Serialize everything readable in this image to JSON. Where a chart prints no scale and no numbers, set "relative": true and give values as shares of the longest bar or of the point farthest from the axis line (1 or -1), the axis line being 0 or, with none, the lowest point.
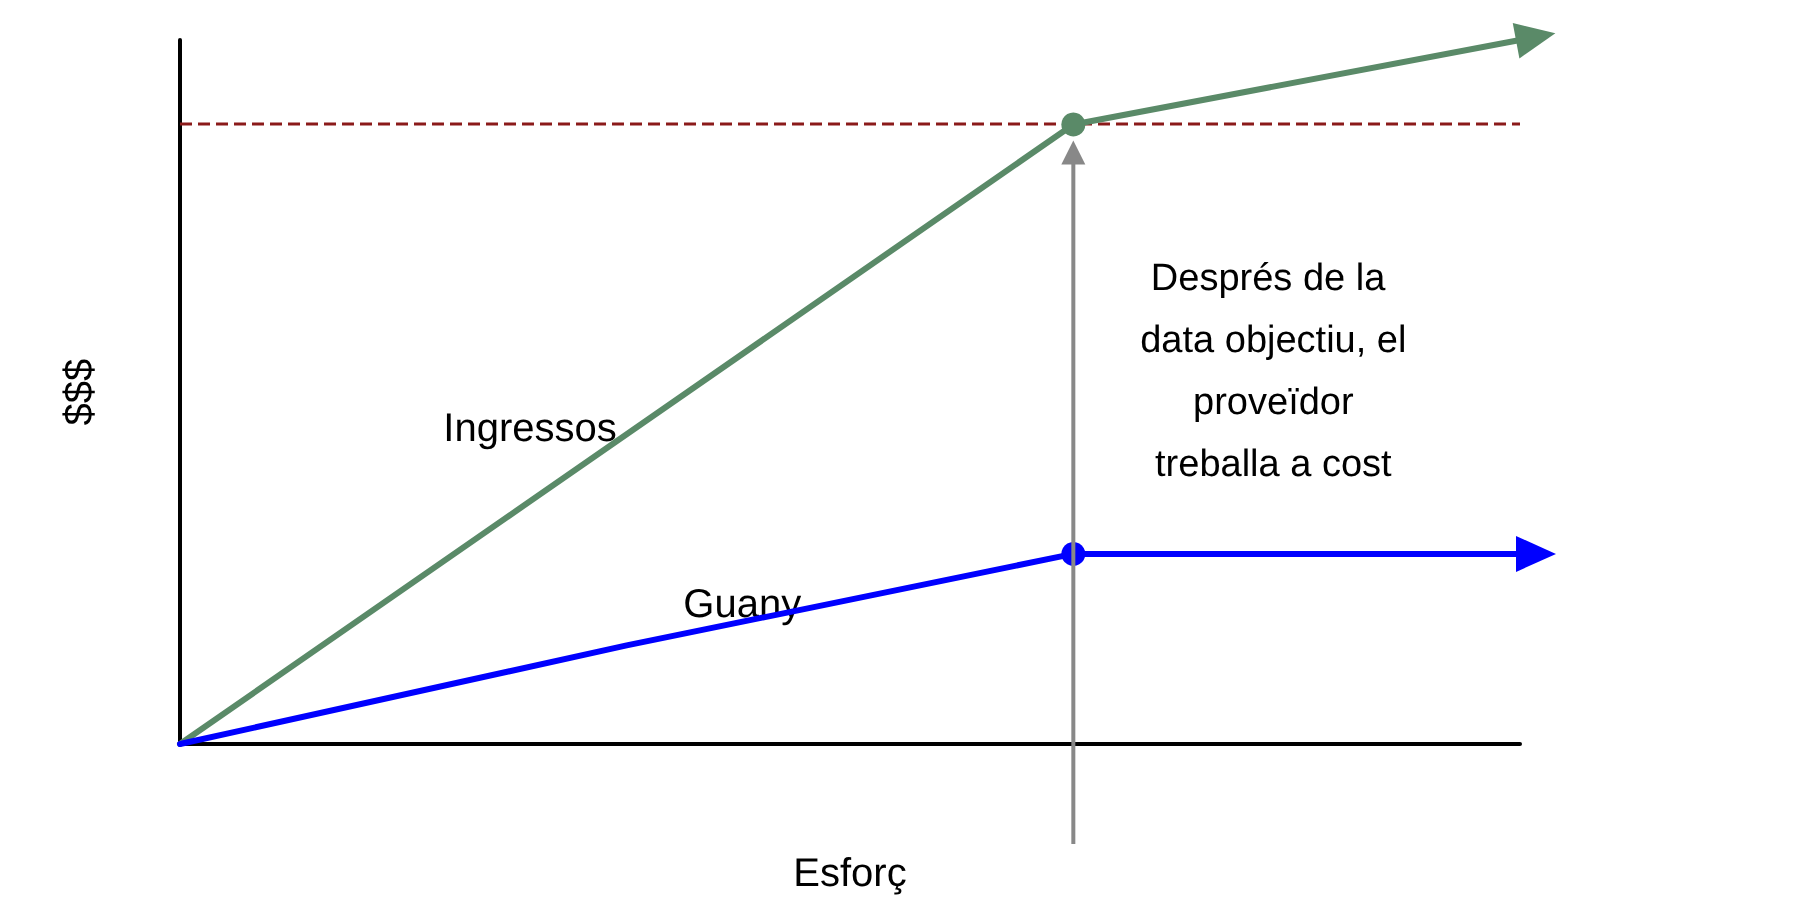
{
  "chart_data": {
    "type": "line",
    "relative": true,
    "xlabel": "Esforç",
    "ylabel": "$$$",
    "categories": [
      null,
      null,
      null,
      null
    ],
    "series": [
      {
        "name": "Ingressos",
        "color": "#5a8a68",
        "values": [
          0,
          0.44,
          0.88,
          1
        ]
      },
      {
        "name": "Guany",
        "color": "#0000ff",
        "values": [
          0,
          0.14,
          0.27,
          0.27
        ]
      }
    ],
    "ref_lines": [
      {
        "axis": "y",
        "value": 0.88,
        "color": "#8b1a1a",
        "line_style": "dashed"
      }
    ],
    "annotations": [
      "Després de la data objectiu, el proveïdor treballa a cost"
    ],
    "grid": false,
    "legend": false
  }
}
